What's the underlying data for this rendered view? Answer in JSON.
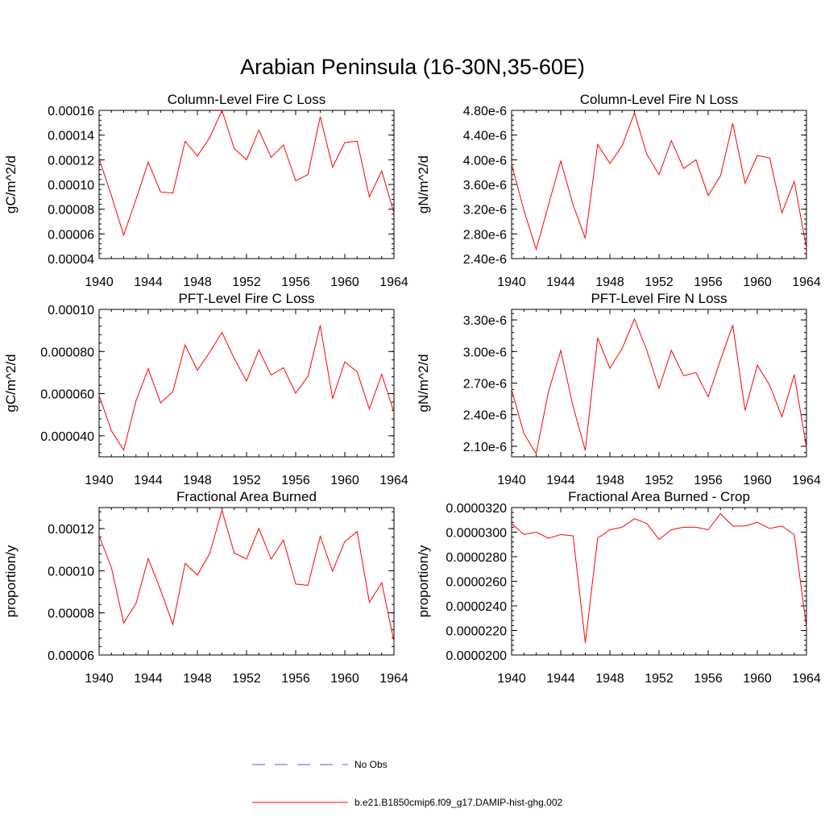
{
  "title": "Arabian Peninsula (16-30N,35-60E)",
  "legend": [
    {
      "label": "No Obs",
      "color": "#5a5acd",
      "style": "dashed"
    },
    {
      "label": "b.e21.B1850cmip6.f09_g17.DAMIP-hist-ghg.002",
      "color": "#ff0000",
      "style": "solid"
    }
  ],
  "chart_data": [
    {
      "type": "line",
      "title": "Column-Level Fire C Loss",
      "ylabel": "gC/m^2/d",
      "xlim": [
        1940,
        1964
      ],
      "ylim": [
        4e-05,
        0.00016
      ],
      "xticks": [
        "1940",
        "1944",
        "1948",
        "1952",
        "1956",
        "1960",
        "1964"
      ],
      "yticks": [
        {
          "value": 4e-05,
          "label": "0.00004"
        },
        {
          "value": 6e-05,
          "label": "0.00006"
        },
        {
          "value": 8e-05,
          "label": "0.00008"
        },
        {
          "value": 0.0001,
          "label": "0.00010"
        },
        {
          "value": 0.00012,
          "label": "0.00012"
        },
        {
          "value": 0.00014,
          "label": "0.00014"
        },
        {
          "value": 0.00016,
          "label": "0.00016"
        }
      ],
      "x": [
        1940,
        1941,
        1942,
        1943,
        1944,
        1945,
        1946,
        1947,
        1948,
        1949,
        1950,
        1951,
        1952,
        1953,
        1954,
        1955,
        1956,
        1957,
        1958,
        1959,
        1960,
        1961,
        1962,
        1963,
        1964
      ],
      "series": [
        {
          "color": "#ff0000",
          "values": [
            0.000121,
            9.1e-05,
            5.9e-05,
            8.8e-05,
            0.000118,
            9.4e-05,
            9.3e-05,
            0.000135,
            0.000123,
            0.000138,
            0.00016,
            0.000129,
            0.00012,
            0.000144,
            0.000122,
            0.000132,
            0.000103,
            0.000108,
            0.000155,
            0.000114,
            0.000134,
            0.000135,
            9e-05,
            0.000111,
            7.7e-05
          ]
        }
      ]
    },
    {
      "type": "line",
      "title": "Column-Level Fire N Loss",
      "ylabel": "gN/m^2/d",
      "xlim": [
        1940,
        1964
      ],
      "ylim": [
        2.4e-06,
        4.8e-06
      ],
      "xticks": [
        "1940",
        "1944",
        "1948",
        "1952",
        "1956",
        "1960",
        "1964"
      ],
      "yticks": [
        {
          "value": 2.4e-06,
          "label": "2.40e-6"
        },
        {
          "value": 2.8e-06,
          "label": "2.80e-6"
        },
        {
          "value": 3.2e-06,
          "label": "3.20e-6"
        },
        {
          "value": 3.6e-06,
          "label": "3.60e-6"
        },
        {
          "value": 4e-06,
          "label": "4.00e-6"
        },
        {
          "value": 4.4e-06,
          "label": "4.40e-6"
        },
        {
          "value": 4.8e-06,
          "label": "4.80e-6"
        }
      ],
      "x": [
        1940,
        1941,
        1942,
        1943,
        1944,
        1945,
        1946,
        1947,
        1948,
        1949,
        1950,
        1951,
        1952,
        1953,
        1954,
        1955,
        1956,
        1957,
        1958,
        1959,
        1960,
        1961,
        1962,
        1963,
        1964
      ],
      "series": [
        {
          "color": "#ff0000",
          "values": [
            3.93e-06,
            3.18e-06,
            2.55e-06,
            3.27e-06,
            3.98e-06,
            3.27e-06,
            2.73e-06,
            4.25e-06,
            3.94e-06,
            4.23e-06,
            4.76e-06,
            4.09e-06,
            3.76e-06,
            4.31e-06,
            3.86e-06,
            4e-06,
            3.42e-06,
            3.74e-06,
            4.59e-06,
            3.62e-06,
            4.07e-06,
            4.03e-06,
            3.14e-06,
            3.65e-06,
            2.57e-06
          ]
        }
      ]
    },
    {
      "type": "line",
      "title": "PFT-Level Fire C Loss",
      "ylabel": "gC/m^2/d",
      "xlim": [
        1940,
        1964
      ],
      "ylim": [
        3e-05,
        0.0001
      ],
      "xticks": [
        "1940",
        "1944",
        "1948",
        "1952",
        "1956",
        "1960",
        "1964"
      ],
      "yticks": [
        {
          "value": 4e-05,
          "label": "0.000040"
        },
        {
          "value": 6e-05,
          "label": "0.000060"
        },
        {
          "value": 8e-05,
          "label": "0.000080"
        },
        {
          "value": 0.0001,
          "label": "0.00010"
        }
      ],
      "x": [
        1940,
        1941,
        1942,
        1943,
        1944,
        1945,
        1946,
        1947,
        1948,
        1949,
        1950,
        1951,
        1952,
        1953,
        1954,
        1955,
        1956,
        1957,
        1958,
        1959,
        1960,
        1961,
        1962,
        1963,
        1964
      ],
      "series": [
        {
          "color": "#ff0000",
          "values": [
            5.91e-05,
            4.24e-05,
            3.32e-05,
            5.65e-05,
            7.18e-05,
            5.56e-05,
            6.09e-05,
            8.31e-05,
            7.11e-05,
            7.97e-05,
            8.91e-05,
            7.66e-05,
            6.6e-05,
            8.08e-05,
            6.88e-05,
            7.23e-05,
            6.02e-05,
            6.82e-05,
            9.24e-05,
            5.76e-05,
            7.51e-05,
            7.03e-05,
            5.27e-05,
            6.92e-05,
            5.12e-05
          ]
        }
      ]
    },
    {
      "type": "line",
      "title": "PFT-Level Fire N Loss",
      "ylabel": "gN/m^2/d",
      "xlim": [
        1940,
        1964
      ],
      "ylim": [
        2e-06,
        3.4e-06
      ],
      "xticks": [
        "1940",
        "1944",
        "1948",
        "1952",
        "1956",
        "1960",
        "1964"
      ],
      "yticks": [
        {
          "value": 2.1e-06,
          "label": "2.10e-6"
        },
        {
          "value": 2.4e-06,
          "label": "2.40e-6"
        },
        {
          "value": 2.7e-06,
          "label": "2.70e-6"
        },
        {
          "value": 3e-06,
          "label": "3.00e-6"
        },
        {
          "value": 3.3e-06,
          "label": "3.30e-6"
        }
      ],
      "x": [
        1940,
        1941,
        1942,
        1943,
        1944,
        1945,
        1946,
        1947,
        1948,
        1949,
        1950,
        1951,
        1952,
        1953,
        1954,
        1955,
        1956,
        1957,
        1958,
        1959,
        1960,
        1961,
        1962,
        1963,
        1964
      ],
      "series": [
        {
          "color": "#ff0000",
          "values": [
            2.64e-06,
            2.22e-06,
            2.03e-06,
            2.62e-06,
            3.01e-06,
            2.48e-06,
            2.06e-06,
            3.13e-06,
            2.84e-06,
            3.03e-06,
            3.31e-06,
            3.01e-06,
            2.65e-06,
            3.01e-06,
            2.77e-06,
            2.8e-06,
            2.57e-06,
            2.92e-06,
            3.25e-06,
            2.44e-06,
            2.87e-06,
            2.68e-06,
            2.38e-06,
            2.78e-06,
            2.09e-06
          ]
        }
      ]
    },
    {
      "type": "line",
      "title": "Fractional Area Burned",
      "ylabel": "proportion/y",
      "xlim": [
        1940,
        1964
      ],
      "ylim": [
        6e-05,
        0.00013
      ],
      "xticks": [
        "1940",
        "1944",
        "1948",
        "1952",
        "1956",
        "1960",
        "1964"
      ],
      "yticks": [
        {
          "value": 6e-05,
          "label": "0.00006"
        },
        {
          "value": 8e-05,
          "label": "0.00008"
        },
        {
          "value": 0.0001,
          "label": "0.00010"
        },
        {
          "value": 0.00012,
          "label": "0.00012"
        }
      ],
      "x": [
        1940,
        1941,
        1942,
        1943,
        1944,
        1945,
        1946,
        1947,
        1948,
        1949,
        1950,
        1951,
        1952,
        1953,
        1954,
        1955,
        1956,
        1957,
        1958,
        1959,
        1960,
        1961,
        1962,
        1963,
        1964
      ],
      "series": [
        {
          "color": "#ff0000",
          "values": [
            0.0001165,
            0.0001015,
            7.52e-05,
            8.45e-05,
            0.0001058,
            9.09e-05,
            7.45e-05,
            0.0001035,
            9.79e-05,
            0.0001082,
            0.0001287,
            0.0001084,
            0.0001056,
            0.0001201,
            0.0001055,
            0.0001146,
            9.37e-05,
            9.31e-05,
            0.0001164,
            9.98e-05,
            0.0001139,
            0.0001186,
            8.5e-05,
            9.43e-05,
            6.64e-05
          ]
        }
      ]
    },
    {
      "type": "line",
      "title": "Fractional Area Burned - Crop",
      "ylabel": "proportion/y",
      "xlim": [
        1940,
        1964
      ],
      "ylim": [
        2e-05,
        3.2e-05
      ],
      "xticks": [
        "1940",
        "1944",
        "1948",
        "1952",
        "1956",
        "1960",
        "1964"
      ],
      "yticks": [
        {
          "value": 2e-05,
          "label": "0.0000200"
        },
        {
          "value": 2.2e-05,
          "label": "0.0000220"
        },
        {
          "value": 2.4e-05,
          "label": "0.0000240"
        },
        {
          "value": 2.6e-05,
          "label": "0.0000260"
        },
        {
          "value": 2.8e-05,
          "label": "0.0000280"
        },
        {
          "value": 3e-05,
          "label": "0.0000300"
        },
        {
          "value": 3.2e-05,
          "label": "0.0000320"
        }
      ],
      "x": [
        1940,
        1941,
        1942,
        1943,
        1944,
        1945,
        1946,
        1947,
        1948,
        1949,
        1950,
        1951,
        1952,
        1953,
        1954,
        1955,
        1956,
        1957,
        1958,
        1959,
        1960,
        1961,
        1962,
        1963,
        1964
      ],
      "series": [
        {
          "color": "#ff0000",
          "values": [
            3.07e-05,
            2.98e-05,
            3e-05,
            2.95e-05,
            2.98e-05,
            2.97e-05,
            2.1e-05,
            2.95e-05,
            3.02e-05,
            3.04e-05,
            3.11e-05,
            3.07e-05,
            2.94e-05,
            3.02e-05,
            3.04e-05,
            3.04e-05,
            3.02e-05,
            3.15e-05,
            3.05e-05,
            3.05e-05,
            3.08e-05,
            3.03e-05,
            3.05e-05,
            2.98e-05,
            2.23e-05
          ]
        }
      ]
    }
  ]
}
